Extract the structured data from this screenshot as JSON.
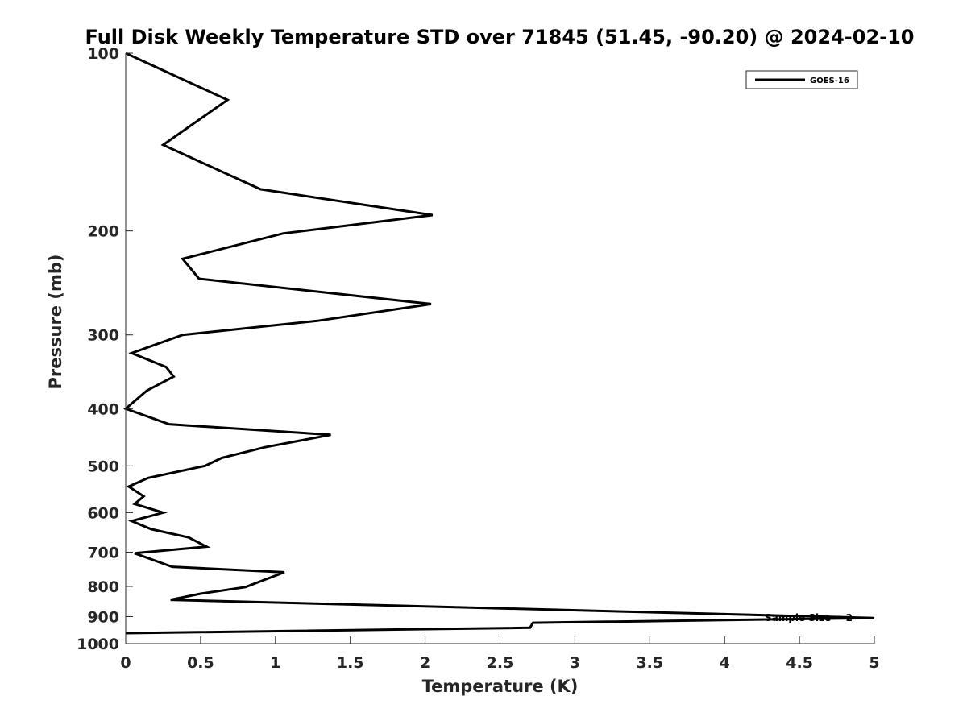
{
  "chart_data": {
    "type": "line",
    "title": "Full Disk Weekly Temperature STD over 71845 (51.45, -90.20) @ 2024-02-10",
    "xlabel": "Temperature (K)",
    "ylabel": "Pressure (mb)",
    "xlim": [
      0,
      5
    ],
    "ylim": [
      100,
      1000
    ],
    "y_scale": "log",
    "y_reversed": true,
    "x_ticks": [
      0,
      0.5,
      1,
      1.5,
      2,
      2.5,
      3,
      3.5,
      4,
      4.5,
      5
    ],
    "x_tick_labels": [
      "0",
      "0.5",
      "1",
      "1.5",
      "2",
      "2.5",
      "3",
      "3.5",
      "4",
      "4.5",
      "5"
    ],
    "y_ticks": [
      100,
      200,
      300,
      400,
      500,
      600,
      700,
      800,
      900,
      1000
    ],
    "y_tick_labels": [
      "100",
      "200",
      "300",
      "400",
      "500",
      "600",
      "700",
      "800",
      "900",
      "1000"
    ],
    "grid": false,
    "legend_position": "top-right",
    "annotation": "Sample Size = 2",
    "series": [
      {
        "name": "GOES-16",
        "color": "#000000",
        "points": [
          [
            0.0,
            100
          ],
          [
            0.68,
            120
          ],
          [
            0.25,
            143
          ],
          [
            0.9,
            170
          ],
          [
            2.05,
            188
          ],
          [
            1.05,
            202
          ],
          [
            0.38,
            223
          ],
          [
            0.49,
            241
          ],
          [
            2.04,
            266
          ],
          [
            1.28,
            284
          ],
          [
            0.38,
            300
          ],
          [
            0.04,
            322
          ],
          [
            0.27,
            340
          ],
          [
            0.32,
            353
          ],
          [
            0.14,
            373
          ],
          [
            0.0,
            400
          ],
          [
            0.29,
            425
          ],
          [
            1.37,
            443
          ],
          [
            0.93,
            465
          ],
          [
            0.64,
            485
          ],
          [
            0.53,
            500
          ],
          [
            0.15,
            524
          ],
          [
            0.02,
            542
          ],
          [
            0.12,
            563
          ],
          [
            0.06,
            580
          ],
          [
            0.25,
            600
          ],
          [
            0.04,
            620
          ],
          [
            0.17,
            640
          ],
          [
            0.42,
            661
          ],
          [
            0.54,
            685
          ],
          [
            0.06,
            703
          ],
          [
            0.31,
            741
          ],
          [
            1.06,
            757
          ],
          [
            0.8,
            802
          ],
          [
            0.5,
            823
          ],
          [
            0.3,
            843
          ],
          [
            5.0,
            905
          ],
          [
            2.72,
            922
          ],
          [
            2.7,
            940
          ],
          [
            0.0,
            960
          ]
        ]
      }
    ]
  }
}
